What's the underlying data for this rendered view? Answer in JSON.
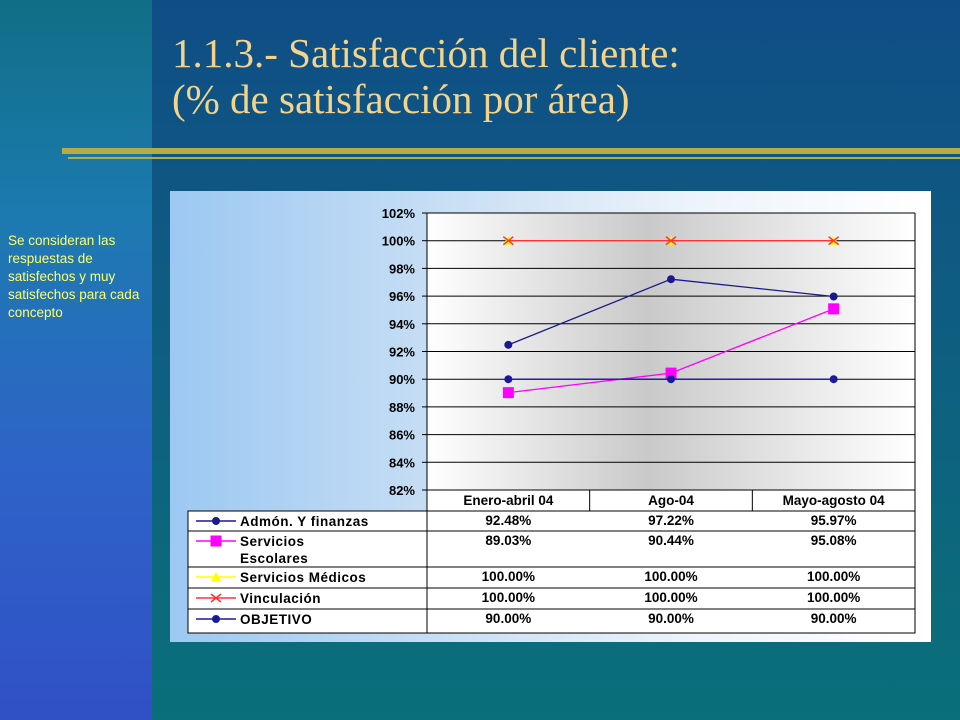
{
  "title": {
    "line1": "1.1.3.- Satisfacción del cliente:",
    "line2": "(% de satisfacción por área)"
  },
  "note": "Se consideran las respuestas de satisfechos y muy satisfechos para cada concepto",
  "colors": {
    "title": "#f3d48a",
    "note": "#ffff66",
    "rule": "#b5ad43"
  },
  "chart_data": {
    "type": "line",
    "categories": [
      "Enero-abril 04",
      "Ago-04",
      "Mayo-agosto 04"
    ],
    "ylim": [
      0.82,
      1.02
    ],
    "yticks": [
      "82%",
      "84%",
      "86%",
      "88%",
      "90%",
      "92%",
      "94%",
      "96%",
      "98%",
      "100%",
      "102%"
    ],
    "grid": true,
    "legend": "data-table",
    "series": [
      {
        "name": "Admón. Y finanzas",
        "values": [
          0.9248,
          0.9722,
          0.9597
        ],
        "labels": [
          "92.48%",
          "97.22%",
          "95.97%"
        ],
        "color": "#1a1a8c",
        "marker": "circle"
      },
      {
        "name": "Servicios Escolares",
        "values": [
          0.8903,
          0.9044,
          0.9508
        ],
        "labels": [
          "89.03%",
          "90.44%",
          "95.08%"
        ],
        "color": "#ff00ff",
        "marker": "square"
      },
      {
        "name": "Servicios Médicos",
        "values": [
          1.0,
          1.0,
          1.0
        ],
        "labels": [
          "100.00%",
          "100.00%",
          "100.00%"
        ],
        "color": "#ffff00",
        "marker": "triangle"
      },
      {
        "name": "Vinculación",
        "values": [
          1.0,
          1.0,
          1.0
        ],
        "labels": [
          "100.00%",
          "100.00%",
          "100.00%"
        ],
        "color": "#ff3333",
        "marker": "x"
      },
      {
        "name": "OBJETIVO",
        "values": [
          0.9,
          0.9,
          0.9
        ],
        "labels": [
          "90.00%",
          "90.00%",
          "90.00%"
        ],
        "color": "#1a1aa0",
        "marker": "circle"
      }
    ]
  }
}
